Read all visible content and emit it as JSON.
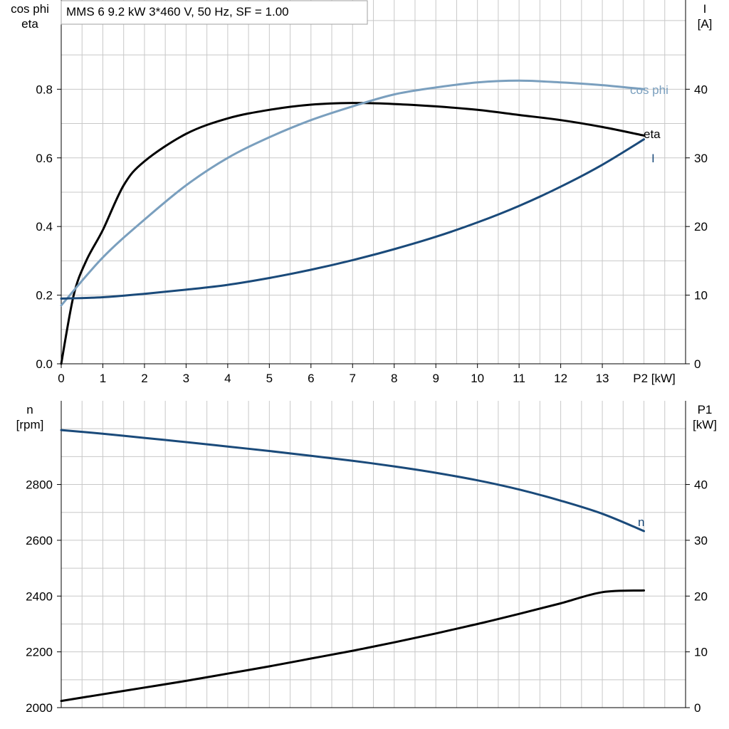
{
  "title": "MMS 6   9.2 kW   3*460 V, 50 Hz, SF = 1.00",
  "chart_data": [
    {
      "type": "line",
      "x_ticks": [
        "0",
        "1",
        "2",
        "3",
        "4",
        "5",
        "6",
        "7",
        "8",
        "9",
        "10",
        "11",
        "12",
        "13"
      ],
      "xlabel": "P2 [kW]",
      "xlim": [
        0,
        15
      ],
      "y_left": {
        "label_lines": [
          "cos phi",
          "eta"
        ],
        "lim": [
          0,
          1.06
        ],
        "ticks": [
          "0.0",
          "0.2",
          "0.4",
          "0.6",
          "0.8"
        ]
      },
      "y_right": {
        "label_lines": [
          "I",
          "[A]"
        ],
        "lim": [
          0,
          53
        ],
        "ticks": [
          "0",
          "10",
          "20",
          "30",
          "40"
        ]
      },
      "grid": true,
      "series": [
        {
          "name": "eta",
          "axis": "left",
          "color": "#000000",
          "x": [
            0,
            0.3,
            0.6,
            1,
            1.5,
            2,
            3,
            4,
            5,
            6,
            7,
            8,
            9,
            10,
            11,
            12,
            13,
            14
          ],
          "y": [
            0,
            0.2,
            0.3,
            0.39,
            0.52,
            0.59,
            0.67,
            0.715,
            0.74,
            0.755,
            0.76,
            0.757,
            0.75,
            0.74,
            0.725,
            0.71,
            0.69,
            0.665
          ]
        },
        {
          "name": "cos phi",
          "axis": "left",
          "color": "#7a9fbe",
          "x": [
            0,
            1,
            2,
            3,
            4,
            5,
            6,
            7,
            8,
            9,
            10,
            11,
            12,
            13,
            14
          ],
          "y": [
            0.17,
            0.31,
            0.42,
            0.52,
            0.6,
            0.66,
            0.71,
            0.75,
            0.785,
            0.805,
            0.82,
            0.825,
            0.82,
            0.812,
            0.8
          ]
        },
        {
          "name": "I",
          "axis": "right",
          "color": "#1a4a7a",
          "x": [
            0,
            1,
            2,
            3,
            4,
            5,
            6,
            7,
            8,
            9,
            10,
            11,
            12,
            13,
            14
          ],
          "y": [
            9.5,
            9.7,
            10.2,
            10.8,
            11.5,
            12.5,
            13.7,
            15.1,
            16.7,
            18.5,
            20.6,
            23,
            25.8,
            29,
            32.7
          ]
        }
      ]
    },
    {
      "type": "line",
      "x_ticks": [],
      "xlabel": "",
      "xlim": [
        0,
        15
      ],
      "y_left": {
        "label_lines": [
          "n",
          "[rpm]"
        ],
        "lim": [
          2000,
          3100
        ],
        "ticks": [
          "2000",
          "2200",
          "2400",
          "2600",
          "2800"
        ]
      },
      "y_right": {
        "label_lines": [
          "P1",
          "[kW]"
        ],
        "lim": [
          0,
          55
        ],
        "ticks": [
          "0",
          "10",
          "20",
          "30",
          "40"
        ]
      },
      "grid": true,
      "series": [
        {
          "name": "n",
          "axis": "left",
          "color": "#1a4a7a",
          "x": [
            0,
            1,
            2,
            3,
            4,
            5,
            6,
            7,
            8,
            9,
            10,
            11,
            12,
            13,
            14
          ],
          "y": [
            2995,
            2982,
            2967,
            2952,
            2936,
            2920,
            2903,
            2885,
            2865,
            2842,
            2815,
            2782,
            2742,
            2695,
            2633
          ]
        },
        {
          "name": "",
          "axis": "right",
          "color": "#000000",
          "x": [
            0,
            1,
            2,
            3,
            4,
            5,
            6,
            7,
            8,
            9,
            10,
            11,
            12,
            13,
            14
          ],
          "y": [
            1.2,
            2.4,
            3.6,
            4.8,
            6.1,
            7.4,
            8.8,
            10.2,
            11.7,
            13.3,
            15,
            16.8,
            18.7,
            20.7,
            21
          ]
        }
      ]
    }
  ]
}
